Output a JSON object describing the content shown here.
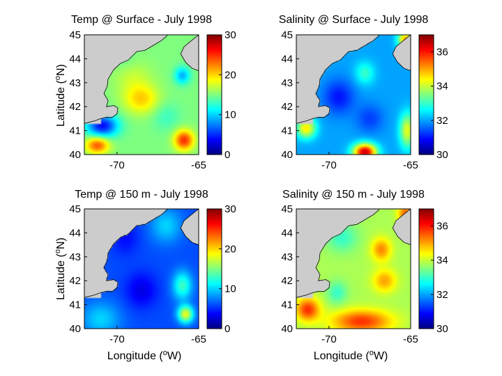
{
  "figure": {
    "y_axis_label": {
      "pre": "Latitude (",
      "sup": "o",
      "post": "N)"
    },
    "x_axis_label": {
      "pre": "Longitude (",
      "sup": "o",
      "post": "W)"
    }
  },
  "colors": {
    "land": "#cccccc",
    "colormap": "jet"
  },
  "chart_data": [
    {
      "type": "heatmap",
      "title": "Temp @ Surface - July 1998",
      "xlim": [
        -72,
        -65
      ],
      "ylim": [
        40,
        45
      ],
      "xticks": [
        -70,
        -65
      ],
      "yticks": [
        40,
        41,
        42,
        43,
        44,
        45
      ],
      "colorbar": {
        "range": [
          0,
          30
        ],
        "ticks": [
          0,
          10,
          20,
          30
        ]
      },
      "field": {
        "background": 15,
        "features": [
          {
            "x": -68.5,
            "y": 42.3,
            "sx": 0.9,
            "sy": 0.5,
            "value": 20
          },
          {
            "x": -69.0,
            "y": 43.2,
            "sx": 1.0,
            "sy": 0.6,
            "value": 17
          },
          {
            "x": -66.0,
            "y": 43.3,
            "sx": 0.4,
            "sy": 0.3,
            "value": 9
          },
          {
            "x": -65.9,
            "y": 40.6,
            "sx": 0.5,
            "sy": 0.35,
            "value": 25
          },
          {
            "x": -71.2,
            "y": 40.4,
            "sx": 0.6,
            "sy": 0.3,
            "value": 24
          },
          {
            "x": -70.9,
            "y": 41.2,
            "sx": 0.8,
            "sy": 0.4,
            "value": 4
          },
          {
            "x": -67.0,
            "y": 41.6,
            "sx": 0.7,
            "sy": 0.5,
            "value": 13
          },
          {
            "x": -69.6,
            "y": 44.0,
            "sx": 0.6,
            "sy": 0.4,
            "value": 14
          }
        ]
      }
    },
    {
      "type": "heatmap",
      "title": "Salinity @ Surface - July 1998",
      "xlim": [
        -72,
        -65
      ],
      "ylim": [
        40,
        45
      ],
      "xticks": [
        -70,
        -65
      ],
      "yticks": [
        40,
        41,
        42,
        43,
        44,
        45
      ],
      "colorbar": {
        "range": [
          30,
          37
        ],
        "ticks": [
          30,
          32,
          34,
          36
        ]
      },
      "field": {
        "background": 32.0,
        "features": [
          {
            "x": -67.8,
            "y": 40.1,
            "sx": 0.6,
            "sy": 0.3,
            "value": 36.5
          },
          {
            "x": -71.4,
            "y": 41.1,
            "sx": 0.5,
            "sy": 0.35,
            "value": 34.5
          },
          {
            "x": -65.2,
            "y": 41.0,
            "sx": 0.4,
            "sy": 0.6,
            "value": 34.2
          },
          {
            "x": -65.3,
            "y": 44.8,
            "sx": 0.4,
            "sy": 0.3,
            "value": 35
          },
          {
            "x": -69.4,
            "y": 42.4,
            "sx": 0.8,
            "sy": 0.6,
            "value": 31.0
          },
          {
            "x": -67.5,
            "y": 41.5,
            "sx": 0.7,
            "sy": 0.5,
            "value": 31.3
          },
          {
            "x": -67.8,
            "y": 43.4,
            "sx": 0.5,
            "sy": 0.4,
            "value": 33.0
          }
        ]
      }
    },
    {
      "type": "heatmap",
      "title": "Temp @ 150 m - July 1998",
      "xlim": [
        -72,
        -65
      ],
      "ylim": [
        40,
        45
      ],
      "xticks": [
        -70,
        -65
      ],
      "yticks": [
        40,
        41,
        42,
        43,
        44,
        45
      ],
      "colorbar": {
        "range": [
          0,
          30
        ],
        "ticks": [
          0,
          10,
          20,
          30
        ]
      },
      "field": {
        "background": 6,
        "features": [
          {
            "x": -65.8,
            "y": 40.6,
            "sx": 0.4,
            "sy": 0.3,
            "value": 18
          },
          {
            "x": -66.0,
            "y": 41.8,
            "sx": 0.5,
            "sy": 0.5,
            "value": 13
          },
          {
            "x": -71.0,
            "y": 40.4,
            "sx": 1.0,
            "sy": 0.6,
            "value": 10
          },
          {
            "x": -68.5,
            "y": 41.6,
            "sx": 0.8,
            "sy": 0.6,
            "value": 3
          },
          {
            "x": -67.0,
            "y": 44.3,
            "sx": 0.8,
            "sy": 0.6,
            "value": 10
          },
          {
            "x": -69.5,
            "y": 43.8,
            "sx": 0.7,
            "sy": 0.6,
            "value": 4
          }
        ]
      }
    },
    {
      "type": "heatmap",
      "title": "Salinity @ 150 m - July 1998",
      "xlim": [
        -72,
        -65
      ],
      "ylim": [
        40,
        45
      ],
      "xticks": [
        -70,
        -65
      ],
      "yticks": [
        40,
        41,
        42,
        43,
        44,
        45
      ],
      "colorbar": {
        "range": [
          30,
          37
        ],
        "ticks": [
          30,
          32,
          34,
          36
        ]
      },
      "field": {
        "background": 33.8,
        "features": [
          {
            "x": -68.0,
            "y": 40.3,
            "sx": 1.5,
            "sy": 0.4,
            "value": 35.8
          },
          {
            "x": -71.3,
            "y": 40.8,
            "sx": 0.6,
            "sy": 0.4,
            "value": 35.8
          },
          {
            "x": -66.8,
            "y": 43.3,
            "sx": 0.5,
            "sy": 0.4,
            "value": 35.2
          },
          {
            "x": -66.6,
            "y": 42.0,
            "sx": 0.6,
            "sy": 0.4,
            "value": 35
          },
          {
            "x": -65.3,
            "y": 44.8,
            "sx": 0.4,
            "sy": 0.3,
            "value": 35.5
          },
          {
            "x": -69.2,
            "y": 43.8,
            "sx": 0.8,
            "sy": 0.5,
            "value": 33.0
          },
          {
            "x": -69.5,
            "y": 41.5,
            "sx": 0.5,
            "sy": 0.4,
            "value": 33.0
          }
        ]
      }
    }
  ]
}
